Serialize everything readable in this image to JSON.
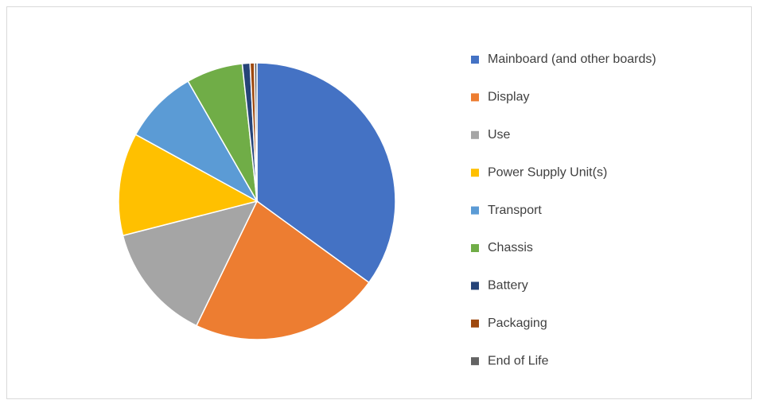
{
  "chart_data": {
    "type": "pie",
    "categories": [
      "Mainboard (and other boards)",
      "Display",
      "Use",
      "Power Supply Unit(s)",
      "Transport",
      "Chassis",
      "Battery",
      "Packaging",
      "End of Life"
    ],
    "values": [
      35,
      22.2,
      13.8,
      12,
      8.7,
      6.6,
      0.9,
      0.5,
      0.3
    ],
    "colors": [
      "#4472c4",
      "#ed7d31",
      "#a5a5a5",
      "#ffc000",
      "#5b9bd5",
      "#70ad47",
      "#264478",
      "#9e480e",
      "#636363"
    ],
    "legend": "right"
  }
}
